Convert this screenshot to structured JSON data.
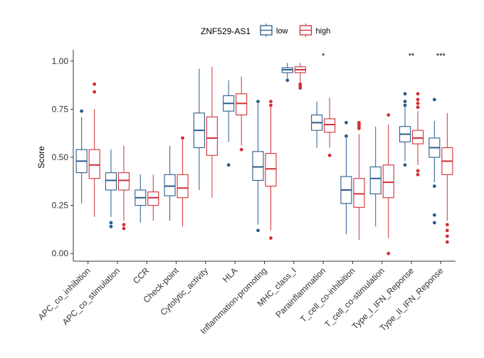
{
  "chart_data": {
    "type": "boxplot",
    "ylabel": "Score",
    "xlabel": "",
    "ylim": [
      -0.04,
      1.04
    ],
    "yticks": [
      {
        "value": 0.0,
        "label": "0.00"
      },
      {
        "value": 0.25,
        "label": "0.25"
      },
      {
        "value": 0.5,
        "label": "0.50"
      },
      {
        "value": 0.75,
        "label": "0.75"
      },
      {
        "value": 1.0,
        "label": "1.00"
      }
    ],
    "legend": {
      "title": "ZNF529-AS1",
      "position": "top",
      "entries": [
        {
          "name": "low",
          "color": "#2B5C8C"
        },
        {
          "name": "high",
          "color": "#D03035"
        }
      ]
    },
    "categories": [
      "APC_co_inhibition",
      "APC_co_stimulation",
      "CCR",
      "Check-point",
      "Cytolytic_activity",
      "HLA",
      "Inflammation-promoting",
      "MHC_class_I",
      "Parainflammation",
      "T_cell_co-inhibition",
      "T_cell_co-stimulation",
      "Type_I_IFN_Reponse",
      "Type_II_IFN_Reponse"
    ],
    "significance": [
      "",
      "",
      "",
      "",
      "",
      "",
      "",
      "",
      "*",
      "",
      "",
      "**",
      "***"
    ],
    "series": [
      {
        "name": "low",
        "color": "#2B5C8C",
        "boxes": [
          {
            "min": 0.26,
            "q1": 0.42,
            "median": 0.48,
            "q3": 0.54,
            "max": 0.71,
            "outliers": [
              0.74
            ]
          },
          {
            "min": 0.19,
            "q1": 0.33,
            "median": 0.38,
            "q3": 0.42,
            "max": 0.54,
            "outliers": [
              0.16,
              0.14
            ]
          },
          {
            "min": 0.16,
            "q1": 0.25,
            "median": 0.29,
            "q3": 0.33,
            "max": 0.41,
            "outliers": []
          },
          {
            "min": 0.17,
            "q1": 0.3,
            "median": 0.35,
            "q3": 0.41,
            "max": 0.56,
            "outliers": []
          },
          {
            "min": 0.33,
            "q1": 0.55,
            "median": 0.64,
            "q3": 0.73,
            "max": 0.96,
            "outliers": []
          },
          {
            "min": 0.58,
            "q1": 0.74,
            "median": 0.78,
            "q3": 0.82,
            "max": 0.9,
            "outliers": [
              0.46
            ]
          },
          {
            "min": 0.15,
            "q1": 0.38,
            "median": 0.45,
            "q3": 0.53,
            "max": 0.78,
            "outliers": [
              0.79,
              0.12
            ]
          },
          {
            "min": 0.91,
            "q1": 0.94,
            "median": 0.955,
            "q3": 0.965,
            "max": 0.99,
            "outliers": [
              0.9
            ]
          },
          {
            "min": 0.55,
            "q1": 0.64,
            "median": 0.68,
            "q3": 0.72,
            "max": 0.79,
            "outliers": []
          },
          {
            "min": 0.1,
            "q1": 0.26,
            "median": 0.33,
            "q3": 0.4,
            "max": 0.6,
            "outliers": [
              0.68,
              0.61
            ]
          },
          {
            "min": 0.14,
            "q1": 0.31,
            "median": 0.39,
            "q3": 0.45,
            "max": 0.66,
            "outliers": []
          },
          {
            "min": 0.48,
            "q1": 0.58,
            "median": 0.62,
            "q3": 0.66,
            "max": 0.76,
            "outliers": [
              0.83,
              0.79,
              0.77,
              0.46
            ]
          },
          {
            "min": 0.37,
            "q1": 0.5,
            "median": 0.55,
            "q3": 0.6,
            "max": 0.69,
            "outliers": [
              0.8,
              0.35,
              0.2,
              0.16
            ]
          }
        ]
      },
      {
        "name": "high",
        "color": "#D03035",
        "boxes": [
          {
            "min": 0.19,
            "q1": 0.39,
            "median": 0.46,
            "q3": 0.54,
            "max": 0.75,
            "outliers": [
              0.88,
              0.84
            ]
          },
          {
            "min": 0.17,
            "q1": 0.33,
            "median": 0.38,
            "q3": 0.42,
            "max": 0.56,
            "outliers": [
              0.15,
              0.13
            ]
          },
          {
            "min": 0.17,
            "q1": 0.25,
            "median": 0.29,
            "q3": 0.32,
            "max": 0.41,
            "outliers": []
          },
          {
            "min": 0.14,
            "q1": 0.29,
            "median": 0.34,
            "q3": 0.41,
            "max": 0.59,
            "outliers": [
              0.6
            ]
          },
          {
            "min": 0.29,
            "q1": 0.51,
            "median": 0.6,
            "q3": 0.71,
            "max": 0.97,
            "outliers": []
          },
          {
            "min": 0.56,
            "q1": 0.72,
            "median": 0.78,
            "q3": 0.83,
            "max": 0.92,
            "outliers": [
              0.54
            ]
          },
          {
            "min": 0.12,
            "q1": 0.35,
            "median": 0.44,
            "q3": 0.52,
            "max": 0.77,
            "outliers": [
              0.79,
              0.77,
              0.08
            ]
          },
          {
            "min": 0.88,
            "q1": 0.94,
            "median": 0.955,
            "q3": 0.97,
            "max": 0.99,
            "outliers": [
              0.86,
              0.87,
              0.88
            ]
          },
          {
            "min": 0.55,
            "q1": 0.63,
            "median": 0.67,
            "q3": 0.7,
            "max": 0.81,
            "outliers": [
              0.51
            ]
          },
          {
            "min": 0.07,
            "q1": 0.24,
            "median": 0.31,
            "q3": 0.39,
            "max": 0.62,
            "outliers": [
              0.68,
              0.67,
              0.66,
              0.65
            ]
          },
          {
            "min": 0.08,
            "q1": 0.29,
            "median": 0.37,
            "q3": 0.46,
            "max": 0.67,
            "outliers": [
              0.72,
              0.0
            ]
          },
          {
            "min": 0.46,
            "q1": 0.57,
            "median": 0.6,
            "q3": 0.64,
            "max": 0.74,
            "outliers": [
              0.83,
              0.8,
              0.78,
              0.76,
              0.43,
              0.41
            ]
          },
          {
            "min": 0.17,
            "q1": 0.41,
            "median": 0.48,
            "q3": 0.55,
            "max": 0.73,
            "outliers": [
              0.15,
              0.12,
              0.09,
              0.06
            ]
          }
        ]
      }
    ]
  }
}
